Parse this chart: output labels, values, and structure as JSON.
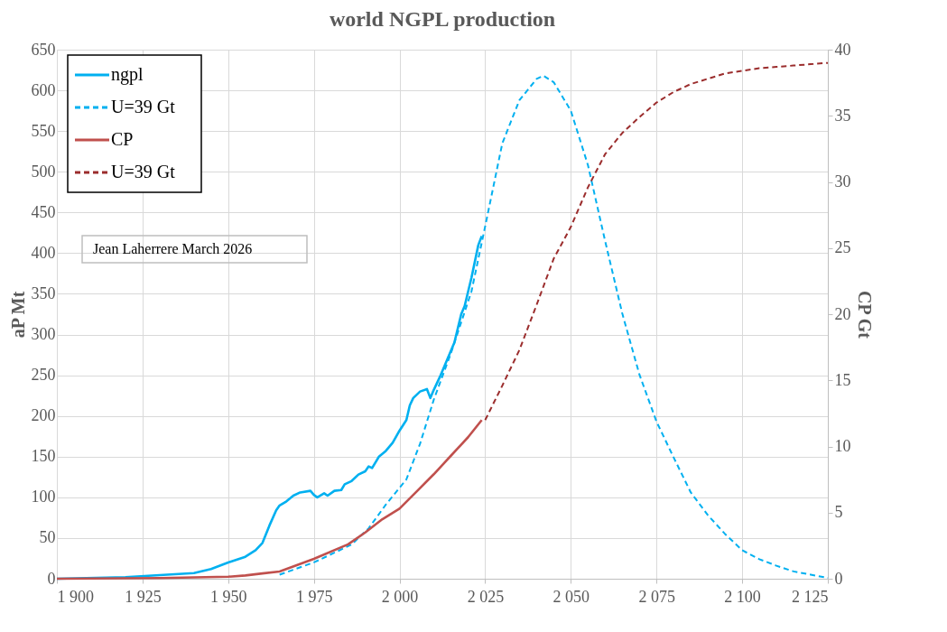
{
  "chart_data": {
    "type": "line",
    "title": "world NGPL production",
    "ylabel": "aP Mt",
    "y2label": "CP Gt",
    "xlim": [
      1900,
      2125
    ],
    "xticks": [
      {
        "value": 1900,
        "label": "1 900"
      },
      {
        "value": 1925,
        "label": "1 925"
      },
      {
        "value": 1950,
        "label": "1 950"
      },
      {
        "value": 1975,
        "label": "1 975"
      },
      {
        "value": 2000,
        "label": "2 000"
      },
      {
        "value": 2025,
        "label": "2 025"
      },
      {
        "value": 2050,
        "label": "2 050"
      },
      {
        "value": 2075,
        "label": "2 075"
      },
      {
        "value": 2100,
        "label": "2 100"
      },
      {
        "value": 2125,
        "label": "2 125"
      }
    ],
    "ylim": [
      0,
      650
    ],
    "yticks": [
      0,
      50,
      100,
      150,
      200,
      250,
      300,
      350,
      400,
      450,
      500,
      550,
      600,
      650
    ],
    "y2lim": [
      0,
      40
    ],
    "y2ticks": [
      0,
      5,
      10,
      15,
      20,
      25,
      30,
      35,
      40
    ],
    "grid": true,
    "legend": "top left",
    "marker": "none",
    "annotations": [
      "Jean Laherrere March 2026"
    ],
    "series": [
      {
        "name": "ngpl",
        "color": "#00b0f0",
        "line_style": "solid",
        "x": [
          1900,
          1920,
          1940,
          1945,
          1950,
          1955,
          1958,
          1960,
          1962,
          1964,
          1965,
          1967,
          1969,
          1971,
          1974,
          1975,
          1976,
          1978,
          1979,
          1981,
          1983,
          1984,
          1986,
          1988,
          1990,
          1991,
          1992,
          1994,
          1996,
          1998,
          2000,
          2002,
          2003,
          2004,
          2006,
          2008,
          2009,
          2010,
          2012,
          2014,
          2016,
          2018,
          2019,
          2021,
          2023,
          2024
        ],
        "values": [
          0,
          2,
          7,
          12,
          20,
          27,
          35,
          44,
          65,
          84,
          90,
          95,
          102,
          106,
          108,
          103,
          100,
          105,
          102,
          108,
          109,
          116,
          120,
          128,
          132,
          138,
          136,
          150,
          157,
          167,
          182,
          195,
          213,
          222,
          230,
          233,
          222,
          232,
          250,
          270,
          290,
          325,
          335,
          370,
          410,
          421
        ]
      },
      {
        "name": "U=39 Gt",
        "color": "#00b0f0",
        "line_style": "dashed",
        "x": [
          1965,
          1975,
          1986,
          1991,
          1996,
          2002,
          2006,
          2010,
          2015,
          2021,
          2025,
          2030,
          2035,
          2040,
          2042,
          2045,
          2050,
          2055,
          2060,
          2065,
          2070,
          2075,
          2080,
          2085,
          2090,
          2095,
          2100,
          2105,
          2110,
          2115,
          2120,
          2125
        ],
        "values": [
          5,
          20,
          42,
          62,
          91,
          122,
          166,
          220,
          277,
          353,
          433,
          535,
          588,
          614,
          618,
          610,
          575,
          508,
          415,
          326,
          251,
          193,
          149,
          106,
          78,
          55,
          35,
          24,
          16,
          9,
          5,
          1
        ]
      },
      {
        "name": "CP",
        "color": "#c0504d",
        "line_style": "solid",
        "axis": "y2",
        "x": [
          1900,
          1930,
          1950,
          1955,
          1960,
          1965,
          1975,
          1985,
          1990,
          1995,
          2000,
          2005,
          2010,
          2015,
          2020,
          2024
        ],
        "values": [
          0,
          0.05,
          0.15,
          0.25,
          0.4,
          0.55,
          1.5,
          2.6,
          3.5,
          4.5,
          5.3,
          6.6,
          7.9,
          9.3,
          10.7,
          12
        ]
      },
      {
        "name": "U=39 Gt",
        "color": "#9b2d2d",
        "line_style": "dashed",
        "axis": "y2",
        "x": [
          2025,
          2030,
          2035,
          2040,
          2045,
          2050,
          2055,
          2060,
          2065,
          2070,
          2075,
          2080,
          2085,
          2090,
          2095,
          2100,
          2105,
          2110,
          2115,
          2120,
          2125
        ],
        "values": [
          12,
          14.6,
          17.3,
          20.7,
          24.2,
          26.6,
          29.6,
          32.1,
          33.7,
          34.9,
          36,
          36.8,
          37.4,
          37.8,
          38.2,
          38.4,
          38.6,
          38.7,
          38.8,
          38.9,
          39
        ]
      }
    ]
  }
}
